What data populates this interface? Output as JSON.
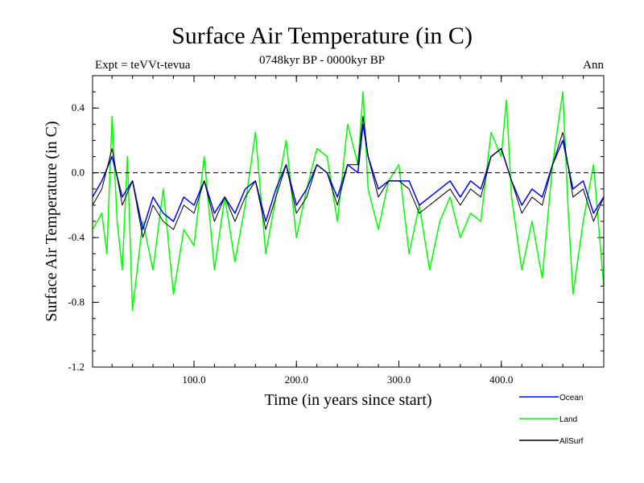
{
  "title": "Surface Air Temperature (in C)",
  "subtitle": "0748kyr BP - 0000kyr BP",
  "expt": "Expt = teVVt-tevua",
  "season": "Ann",
  "colors": {
    "Ocean": "#0000ff",
    "Land": "#00ff00",
    "AllSurf": "#000000"
  },
  "chart_data": {
    "type": "line",
    "xlabel": "Time (in years since start)",
    "ylabel": "Surface Air Temperature (in C)",
    "xlim": [
      1,
      500
    ],
    "ylim": [
      -1.2,
      0.6
    ],
    "xticks": [
      100,
      200,
      300,
      400
    ],
    "xtick_labels": [
      "100.0",
      "200.0",
      "300.0",
      "400.0"
    ],
    "yticks": [
      0.4,
      0.0,
      -0.4,
      -0.8,
      -1.2
    ],
    "ytick_labels": [
      "0.4",
      "0.0",
      "-0.4",
      "-0.8",
      "-1.2"
    ],
    "reference_line": 0.0,
    "series": [
      {
        "name": "Ocean",
        "x": [
          1,
          10,
          20,
          30,
          40,
          50,
          60,
          70,
          80,
          90,
          100,
          110,
          120,
          130,
          140,
          150,
          160,
          170,
          180,
          190,
          200,
          210,
          220,
          230,
          240,
          250,
          260,
          265,
          270,
          280,
          290,
          300,
          310,
          320,
          330,
          340,
          350,
          360,
          370,
          380,
          390,
          400,
          410,
          420,
          430,
          440,
          450,
          460,
          470,
          480,
          490,
          500
        ],
        "y": [
          -0.15,
          -0.05,
          0.1,
          -0.15,
          -0.05,
          -0.35,
          -0.15,
          -0.25,
          -0.3,
          -0.15,
          -0.2,
          -0.05,
          -0.25,
          -0.15,
          -0.25,
          -0.1,
          -0.05,
          -0.3,
          -0.1,
          0.05,
          -0.2,
          -0.1,
          0.05,
          0.0,
          -0.15,
          0.05,
          0.0,
          0.3,
          0.1,
          -0.1,
          -0.05,
          -0.05,
          -0.05,
          -0.2,
          -0.15,
          -0.1,
          -0.05,
          -0.15,
          -0.05,
          -0.1,
          0.1,
          0.15,
          -0.05,
          -0.2,
          -0.1,
          -0.15,
          0.05,
          0.2,
          -0.1,
          -0.05,
          -0.25,
          -0.15
        ]
      },
      {
        "name": "Land",
        "x": [
          1,
          10,
          15,
          20,
          25,
          30,
          35,
          40,
          50,
          60,
          70,
          80,
          90,
          100,
          110,
          120,
          130,
          140,
          150,
          160,
          170,
          180,
          190,
          200,
          210,
          220,
          230,
          240,
          250,
          260,
          265,
          270,
          280,
          290,
          300,
          310,
          320,
          330,
          340,
          350,
          360,
          370,
          380,
          390,
          400,
          405,
          410,
          420,
          430,
          440,
          450,
          460,
          465,
          470,
          480,
          490,
          500
        ],
        "y": [
          -0.35,
          -0.25,
          -0.5,
          0.35,
          -0.3,
          -0.6,
          0.1,
          -0.85,
          -0.3,
          -0.6,
          -0.1,
          -0.75,
          -0.35,
          -0.45,
          0.1,
          -0.6,
          -0.15,
          -0.55,
          -0.2,
          0.25,
          -0.5,
          -0.15,
          0.2,
          -0.4,
          -0.1,
          0.15,
          0.1,
          -0.3,
          0.3,
          0.05,
          0.5,
          -0.1,
          -0.35,
          -0.05,
          0.05,
          -0.5,
          -0.2,
          -0.6,
          -0.3,
          -0.15,
          -0.4,
          -0.25,
          -0.3,
          0.25,
          0.1,
          0.45,
          -0.15,
          -0.6,
          -0.3,
          -0.65,
          0.05,
          0.5,
          -0.2,
          -0.75,
          -0.3,
          0.05,
          -0.7
        ]
      },
      {
        "name": "AllSurf",
        "x": [
          1,
          10,
          20,
          30,
          40,
          50,
          60,
          70,
          80,
          90,
          100,
          110,
          120,
          130,
          140,
          150,
          160,
          170,
          180,
          190,
          200,
          210,
          220,
          230,
          240,
          250,
          260,
          265,
          270,
          280,
          290,
          300,
          310,
          320,
          330,
          340,
          350,
          360,
          370,
          380,
          390,
          400,
          410,
          420,
          430,
          440,
          450,
          460,
          470,
          480,
          490,
          500
        ],
        "y": [
          -0.2,
          -0.1,
          0.15,
          -0.2,
          -0.05,
          -0.4,
          -0.2,
          -0.3,
          -0.35,
          -0.2,
          -0.25,
          -0.05,
          -0.3,
          -0.15,
          -0.3,
          -0.15,
          -0.05,
          -0.35,
          -0.15,
          0.05,
          -0.25,
          -0.15,
          0.05,
          0.0,
          -0.2,
          0.05,
          0.05,
          0.35,
          0.1,
          -0.15,
          -0.05,
          -0.05,
          -0.1,
          -0.25,
          -0.2,
          -0.15,
          -0.1,
          -0.2,
          -0.1,
          -0.15,
          0.1,
          0.15,
          -0.05,
          -0.25,
          -0.15,
          -0.2,
          0.05,
          0.25,
          -0.15,
          -0.1,
          -0.3,
          -0.15
        ]
      }
    ],
    "legend": [
      "Ocean",
      "Land",
      "AllSurf"
    ],
    "legend_position": "bottom-right"
  }
}
